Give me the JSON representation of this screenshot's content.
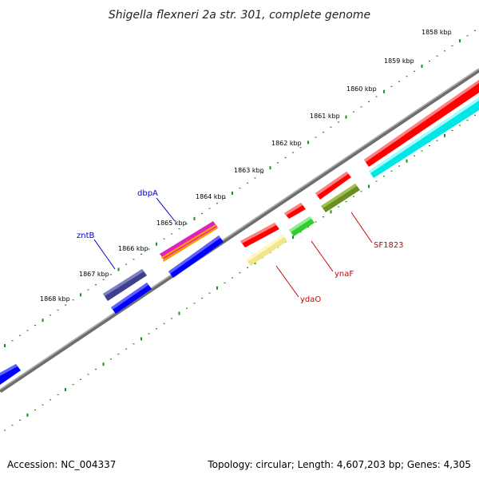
{
  "title": "Shigella flexneri 2a str. 301, complete genome",
  "footer": {
    "accession": "Accession: NC_004337",
    "summary": "Topology: circular; Length: 4,607,203 bp; Genes: 4,305"
  },
  "scale_ticks": [
    {
      "label": "1858 kbp"
    },
    {
      "label": "1859 kbp"
    },
    {
      "label": "1860 kbp"
    },
    {
      "label": "1861 kbp"
    },
    {
      "label": "1862 kbp"
    },
    {
      "label": "1863 kbp"
    },
    {
      "label": "1864 kbp"
    },
    {
      "label": "1865 kbp"
    },
    {
      "label": "1866 kbp"
    },
    {
      "label": "1867 kbp"
    },
    {
      "label": "1868 kbp"
    }
  ],
  "gene_labels": [
    {
      "name": "dbpA",
      "color": "#0000cc"
    },
    {
      "name": "zntB",
      "color": "#0000cc"
    },
    {
      "name": "SF1823",
      "color": "#cc0000"
    },
    {
      "name": "ynaF",
      "color": "#cc0000"
    },
    {
      "name": "ydaO",
      "color": "#cc0000"
    }
  ],
  "colors": {
    "backbone": "#808080",
    "ticks": "#228b22",
    "red": "#ff0000",
    "blue": "#0000ff",
    "cyan": "#00e5e5",
    "navy": "#3f3f8f",
    "magenta": "#e020c0",
    "orange": "#ff9900",
    "green": "#33cc33",
    "olive": "#6b8e23",
    "pale_yellow": "#f0e68c"
  }
}
